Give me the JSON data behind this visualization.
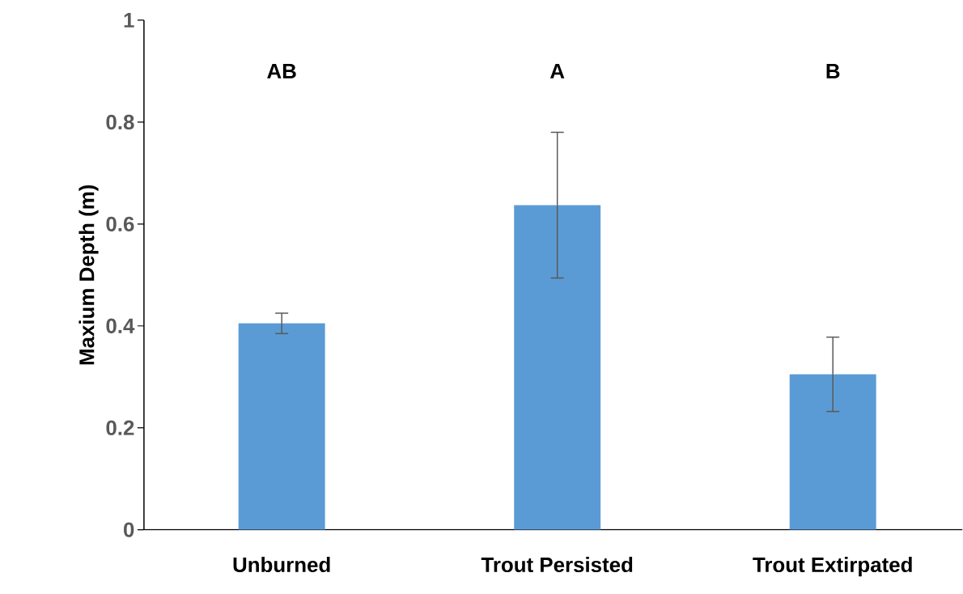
{
  "chart_data": {
    "type": "bar",
    "ylabel": "Maxium Depth (m)",
    "categories": [
      "Unburned",
      "Trout Persisted",
      "Trout Extirpated"
    ],
    "values": [
      0.405,
      0.637,
      0.305
    ],
    "errors": [
      0.02,
      0.143,
      0.073
    ],
    "color": "#5b9bd5",
    "ylim": [
      0,
      1
    ],
    "yticks": [
      0,
      0.2,
      0.4,
      0.6,
      0.8,
      1
    ],
    "annotations": [
      "AB",
      "A",
      "B"
    ]
  }
}
